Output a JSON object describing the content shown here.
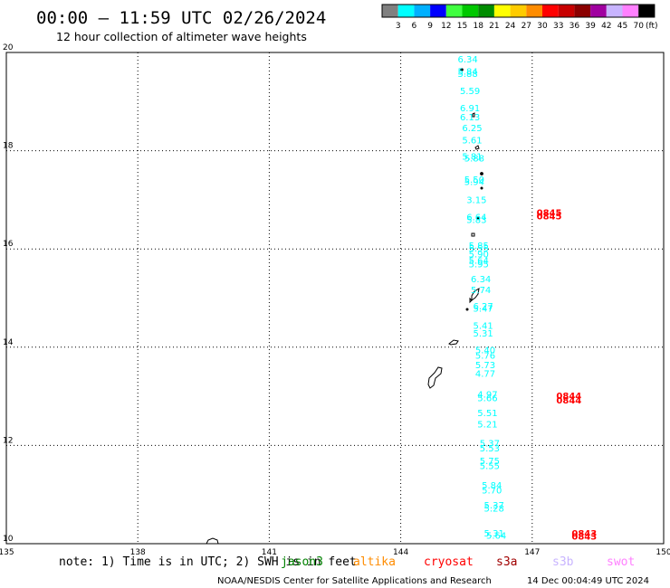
{
  "header": {
    "title": "00:00 – 11:59 UTC 02/26/2024",
    "subtitle": "12 hour collection of altimeter wave heights"
  },
  "colorbar": {
    "unit": "(ft)",
    "bins": [
      {
        "label": "3",
        "color": "#808080"
      },
      {
        "label": "6",
        "color": "#00ffff"
      },
      {
        "label": "9",
        "color": "#00b0ff"
      },
      {
        "label": "12",
        "color": "#0000ff"
      },
      {
        "label": "15",
        "color": "#40ff40"
      },
      {
        "label": "18",
        "color": "#00c800"
      },
      {
        "label": "21",
        "color": "#008c00"
      },
      {
        "label": "24",
        "color": "#ffff00"
      },
      {
        "label": "27",
        "color": "#ffcc00"
      },
      {
        "label": "30",
        "color": "#ff8c00"
      },
      {
        "label": "33",
        "color": "#ff0000"
      },
      {
        "label": "36",
        "color": "#c80000"
      },
      {
        "label": "39",
        "color": "#8b0000"
      },
      {
        "label": "42",
        "color": "#a000a0"
      },
      {
        "label": "45",
        "color": "#c8b4ff"
      },
      {
        "label": "70",
        "color": "#ff80ff"
      },
      {
        "label": "",
        "color": "#000000"
      }
    ]
  },
  "notes": {
    "note_text": "note: 1) Time is in UTC; 2) SWH is in feet",
    "satellites": [
      {
        "label": "jason3",
        "color": "#008000"
      },
      {
        "label": "altika",
        "color": "#ff8c00"
      },
      {
        "label": "cryosat",
        "color": "#ff0000"
      },
      {
        "label": "s3a",
        "color": "#a00000"
      },
      {
        "label": "s3b",
        "color": "#c8b4ff"
      },
      {
        "label": "swot",
        "color": "#ff80ff"
      }
    ]
  },
  "footer": {
    "credit": "NOAA/NESDIS Center for Satellite Applications and Research",
    "timestamp": "14 Dec 00:04:49 UTC 2024"
  },
  "chart_data": {
    "type": "scatter",
    "xlim": [
      135,
      150
    ],
    "ylim": [
      10,
      20
    ],
    "xticks": [
      "135",
      "138",
      "141",
      "144",
      "147",
      "150"
    ],
    "yticks": [
      "10",
      "12",
      "14",
      "16",
      "18",
      "20"
    ],
    "grid": true,
    "series": [
      {
        "name": "altimeter track",
        "color": "#00ffff",
        "points": [
          {
            "lon": 145.3,
            "lat": 19.8,
            "label": "6.34"
          },
          {
            "lon": 145.3,
            "lat": 19.55,
            "label": "5.84"
          },
          {
            "lon": 145.3,
            "lat": 19.5,
            "label": "5.88"
          },
          {
            "lon": 145.35,
            "lat": 19.15,
            "label": "5.59"
          },
          {
            "lon": 145.35,
            "lat": 18.8,
            "label": "6.91"
          },
          {
            "lon": 145.35,
            "lat": 18.62,
            "label": "6.13"
          },
          {
            "lon": 145.4,
            "lat": 18.4,
            "label": "6.25"
          },
          {
            "lon": 145.4,
            "lat": 18.15,
            "label": "5.61"
          },
          {
            "lon": 145.4,
            "lat": 17.82,
            "label": "5.81"
          },
          {
            "lon": 145.45,
            "lat": 17.78,
            "label": "5.88"
          },
          {
            "lon": 145.45,
            "lat": 17.35,
            "label": "5.50"
          },
          {
            "lon": 145.45,
            "lat": 17.3,
            "label": "5.94"
          },
          {
            "lon": 145.5,
            "lat": 16.93,
            "label": "3.15"
          },
          {
            "lon": 145.5,
            "lat": 16.58,
            "label": "6.64"
          },
          {
            "lon": 145.5,
            "lat": 16.53,
            "label": "5.83"
          },
          {
            "lon": 145.55,
            "lat": 16.0,
            "label": "5.85"
          },
          {
            "lon": 145.55,
            "lat": 15.95,
            "label": "5.55"
          },
          {
            "lon": 145.55,
            "lat": 15.83,
            "label": "5.90"
          },
          {
            "lon": 145.55,
            "lat": 15.7,
            "label": "5.64"
          },
          {
            "lon": 145.55,
            "lat": 15.63,
            "label": "5.95"
          },
          {
            "lon": 145.6,
            "lat": 15.32,
            "label": "6.34"
          },
          {
            "lon": 145.6,
            "lat": 15.1,
            "label": "5.74"
          },
          {
            "lon": 145.65,
            "lat": 14.77,
            "label": "6.27"
          },
          {
            "lon": 145.65,
            "lat": 14.72,
            "label": "5.47"
          },
          {
            "lon": 145.65,
            "lat": 14.37,
            "label": "5.41"
          },
          {
            "lon": 145.65,
            "lat": 14.22,
            "label": "5.31"
          },
          {
            "lon": 145.7,
            "lat": 13.88,
            "label": "5.40"
          },
          {
            "lon": 145.7,
            "lat": 13.77,
            "label": "5.76"
          },
          {
            "lon": 145.7,
            "lat": 13.57,
            "label": "5.73"
          },
          {
            "lon": 145.7,
            "lat": 13.4,
            "label": "4.77"
          },
          {
            "lon": 145.75,
            "lat": 12.97,
            "label": "4.97"
          },
          {
            "lon": 145.75,
            "lat": 12.9,
            "label": "5.66"
          },
          {
            "lon": 145.75,
            "lat": 12.6,
            "label": "5.51"
          },
          {
            "lon": 145.75,
            "lat": 12.37,
            "label": "5.21"
          },
          {
            "lon": 145.8,
            "lat": 11.98,
            "label": "5.37"
          },
          {
            "lon": 145.8,
            "lat": 11.88,
            "label": "5.53"
          },
          {
            "lon": 145.8,
            "lat": 11.62,
            "label": "5.75"
          },
          {
            "lon": 145.8,
            "lat": 11.52,
            "label": "5.55"
          },
          {
            "lon": 145.85,
            "lat": 11.12,
            "label": "5.84"
          },
          {
            "lon": 145.85,
            "lat": 11.02,
            "label": "5.70"
          },
          {
            "lon": 145.9,
            "lat": 10.72,
            "label": "5.37"
          },
          {
            "lon": 145.9,
            "lat": 10.65,
            "label": "5.28"
          },
          {
            "lon": 145.9,
            "lat": 10.15,
            "label": "5.31"
          },
          {
            "lon": 145.95,
            "lat": 10.1,
            "label": "5.64"
          }
        ]
      },
      {
        "name": "time labels",
        "color": "#ff0000",
        "points": [
          {
            "lon": 147.1,
            "lat": 16.68,
            "label": "0845"
          },
          {
            "lon": 147.1,
            "lat": 16.6,
            "label": "0845"
          },
          {
            "lon": 147.55,
            "lat": 12.95,
            "label": "0844"
          },
          {
            "lon": 147.55,
            "lat": 12.85,
            "label": "0844"
          },
          {
            "lon": 147.9,
            "lat": 10.15,
            "label": "0843"
          },
          {
            "lon": 147.9,
            "lat": 10.08,
            "label": "0843"
          }
        ]
      }
    ]
  }
}
